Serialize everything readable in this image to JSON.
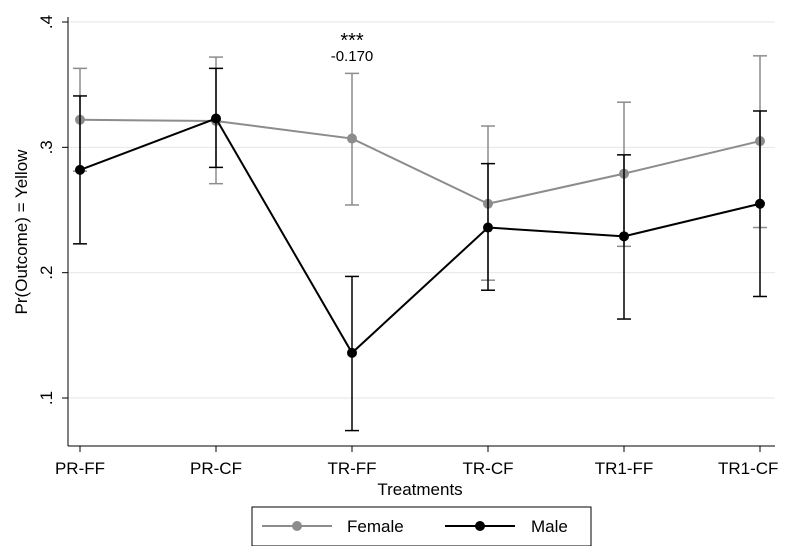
{
  "chart_data": {
    "type": "line",
    "title": "",
    "xlabel": "Treatments",
    "ylabel": "Pr(Outcome) = Yellow",
    "categories": [
      "PR-FF",
      "PR-CF",
      "TR-FF",
      "TR-CF",
      "TR1-FF",
      "TR1-CF"
    ],
    "ylim": [
      0.07,
      0.42
    ],
    "yticks": [
      0.1,
      0.2,
      0.3,
      0.4
    ],
    "ytick_labels": [
      ".1",
      ".2",
      ".3",
      ".4"
    ],
    "grid": "horizontal",
    "series": [
      {
        "name": "Female",
        "color": "#8c8c8c",
        "values": [
          0.322,
          0.321,
          0.307,
          0.255,
          0.279,
          0.305
        ],
        "ci_low": [
          0.281,
          0.271,
          0.254,
          0.194,
          0.221,
          0.236
        ],
        "ci_high": [
          0.363,
          0.372,
          0.359,
          0.317,
          0.336,
          0.373
        ]
      },
      {
        "name": "Male",
        "color": "#000000",
        "values": [
          0.282,
          0.323,
          0.136,
          0.236,
          0.229,
          0.255
        ],
        "ci_low": [
          0.223,
          0.284,
          0.074,
          0.186,
          0.163,
          0.181
        ],
        "ci_high": [
          0.341,
          0.363,
          0.197,
          0.287,
          0.294,
          0.329
        ]
      }
    ],
    "annotations": [
      {
        "category": "TR-FF",
        "stars": "***",
        "label": "-0.170"
      }
    ],
    "legend": {
      "position": "bottom",
      "entries": [
        "Female",
        "Male"
      ]
    }
  }
}
